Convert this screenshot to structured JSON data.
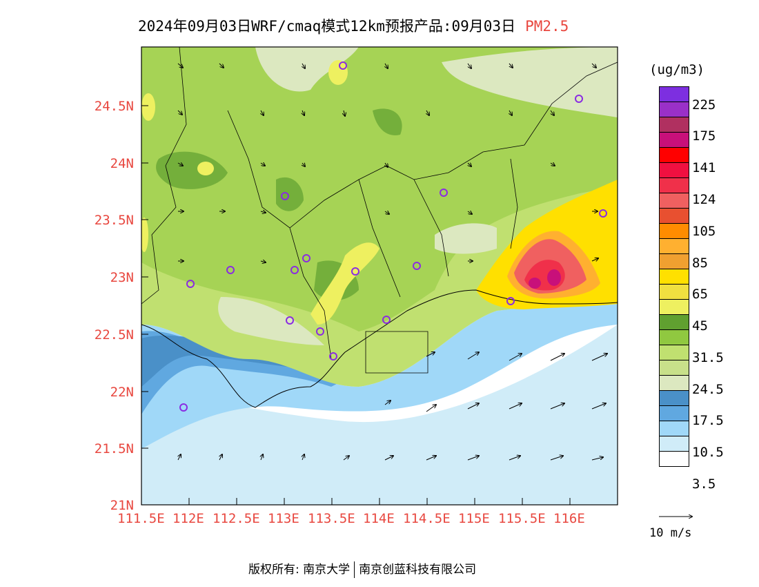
{
  "title": {
    "main": "2024年09月03日WRF/cmaq模式12km预报产品:09月03日",
    "pollutant": "PM2.5"
  },
  "map": {
    "lat_labels": [
      "24.5N",
      "24N",
      "23.5N",
      "23N",
      "22.5N",
      "22N",
      "21.5N",
      "21N"
    ],
    "lon_labels": [
      "111.5E",
      "112E",
      "112.5E",
      "113E",
      "113.5E",
      "114E",
      "114.5E",
      "115E",
      "115.5E",
      "116E"
    ],
    "bounds": {
      "lon_min": 111.5,
      "lon_max": 116.5,
      "lat_min": 21.0,
      "lat_max": 25.0
    }
  },
  "legend": {
    "unit": "(ug/m3)",
    "labels": [
      "225",
      "175",
      "141",
      "124",
      "105",
      "85",
      "65",
      "45",
      "31.5",
      "24.5",
      "17.5",
      "10.5",
      "3.5"
    ],
    "colors": [
      "#7d2fe0",
      "#9a30c8",
      "#b03060",
      "#c8107a",
      "#ff0000",
      "#f01040",
      "#f0304a",
      "#f06060",
      "#e85030",
      "#ff8c00",
      "#ffb030",
      "#f0a030",
      "#ffe000",
      "#f0e040",
      "#eef060",
      "#60a030",
      "#90c840",
      "#c0e070",
      "#c8e08a",
      "#dce8c0",
      "#4a90c8",
      "#60a8e0",
      "#a0d8f8",
      "#d0ecf8",
      "#ffffff"
    ],
    "vector_label": "10 m/s"
  },
  "footer": {
    "left": "版权所有: 南京大学",
    "right": "南京创蓝科技有限公司"
  }
}
